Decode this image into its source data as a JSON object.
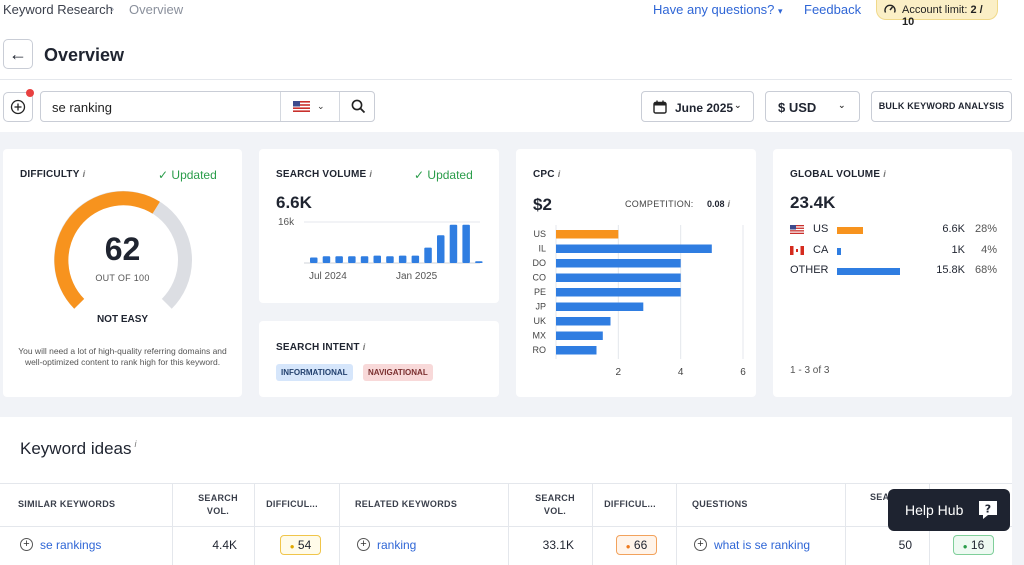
{
  "breadcrumb": {
    "root": "Keyword Research",
    "current": "Overview"
  },
  "topbar": {
    "questions": "Have any questions?",
    "feedback": "Feedback",
    "limit_label": "Account limit:",
    "limit_value": "2 / 10"
  },
  "header": {
    "title": "Overview"
  },
  "search": {
    "value": "se ranking",
    "country": "US"
  },
  "controls": {
    "date": "June 2025",
    "currency": "$ USD",
    "bulk": "BULK KEYWORD ANALYSIS"
  },
  "difficulty": {
    "title": "DIFFICULTY",
    "status": "Updated",
    "value": "62",
    "scale": "OUT OF 100",
    "label": "NOT EASY",
    "level": 62,
    "desc": "You will need a lot of high-quality referring domains and well-optimized content to rank high for this keyword."
  },
  "volume": {
    "title": "SEARCH VOLUME",
    "status": "Updated",
    "value": "6.6K",
    "axis_top": "16k",
    "xticks": [
      "Jul 2024",
      "Jan 2025"
    ],
    "bars": [
      0.9,
      1.1,
      1.1,
      1.1,
      1.1,
      1.2,
      1.1,
      1.2,
      1.2,
      2.5,
      4.5,
      6.2,
      6.2,
      0.3
    ]
  },
  "intent": {
    "title": "SEARCH INTENT",
    "tags": [
      "INFORMATIONAL",
      "NAVIGATIONAL"
    ]
  },
  "cpc": {
    "title": "CPC",
    "value": "$2",
    "competition_label": "COMPETITION:",
    "competition_value": "0.08",
    "countries": [
      "US",
      "IL",
      "DO",
      "CO",
      "PE",
      "JP",
      "UK",
      "MX",
      "RO"
    ],
    "values": [
      2.0,
      5.0,
      4.0,
      4.0,
      4.0,
      2.8,
      1.75,
      1.5,
      1.3
    ],
    "xticks": [
      "2",
      "4",
      "6"
    ],
    "xmax": 6
  },
  "global": {
    "title": "GLOBAL VOLUME",
    "value": "23.4K",
    "rows": [
      {
        "country": "US",
        "volume": "6.6K",
        "share": "28%",
        "pct": 28
      },
      {
        "country": "CA",
        "volume": "1K",
        "share": "4%",
        "pct": 4
      },
      {
        "country": "OTHER",
        "volume": "15.8K",
        "share": "68%",
        "pct": 68
      }
    ],
    "pager": "1 - 3 of 3"
  },
  "ideas": {
    "title": "Keyword ideas",
    "col1": "SIMILAR KEYWORDS",
    "col_vol": "SEARCH VOL.",
    "col_diff": "DIFFICUL...",
    "col2": "RELATED KEYWORDS",
    "col3": "QUESTIONS",
    "col3_vol": "SEA",
    "row1": {
      "similar": "se rankings",
      "similar_vol": "4.4K",
      "similar_diff": "54",
      "related": "ranking",
      "related_vol": "33.1K",
      "related_diff": "66",
      "question": "what is se ranking",
      "question_vol": "50",
      "question_diff": "16"
    }
  },
  "helphub": "Help Hub",
  "colors": {
    "orange": "#f7931e",
    "blue": "#2f7de1",
    "green": "#2a9d4a",
    "gray_arc": "#dcdee3"
  }
}
